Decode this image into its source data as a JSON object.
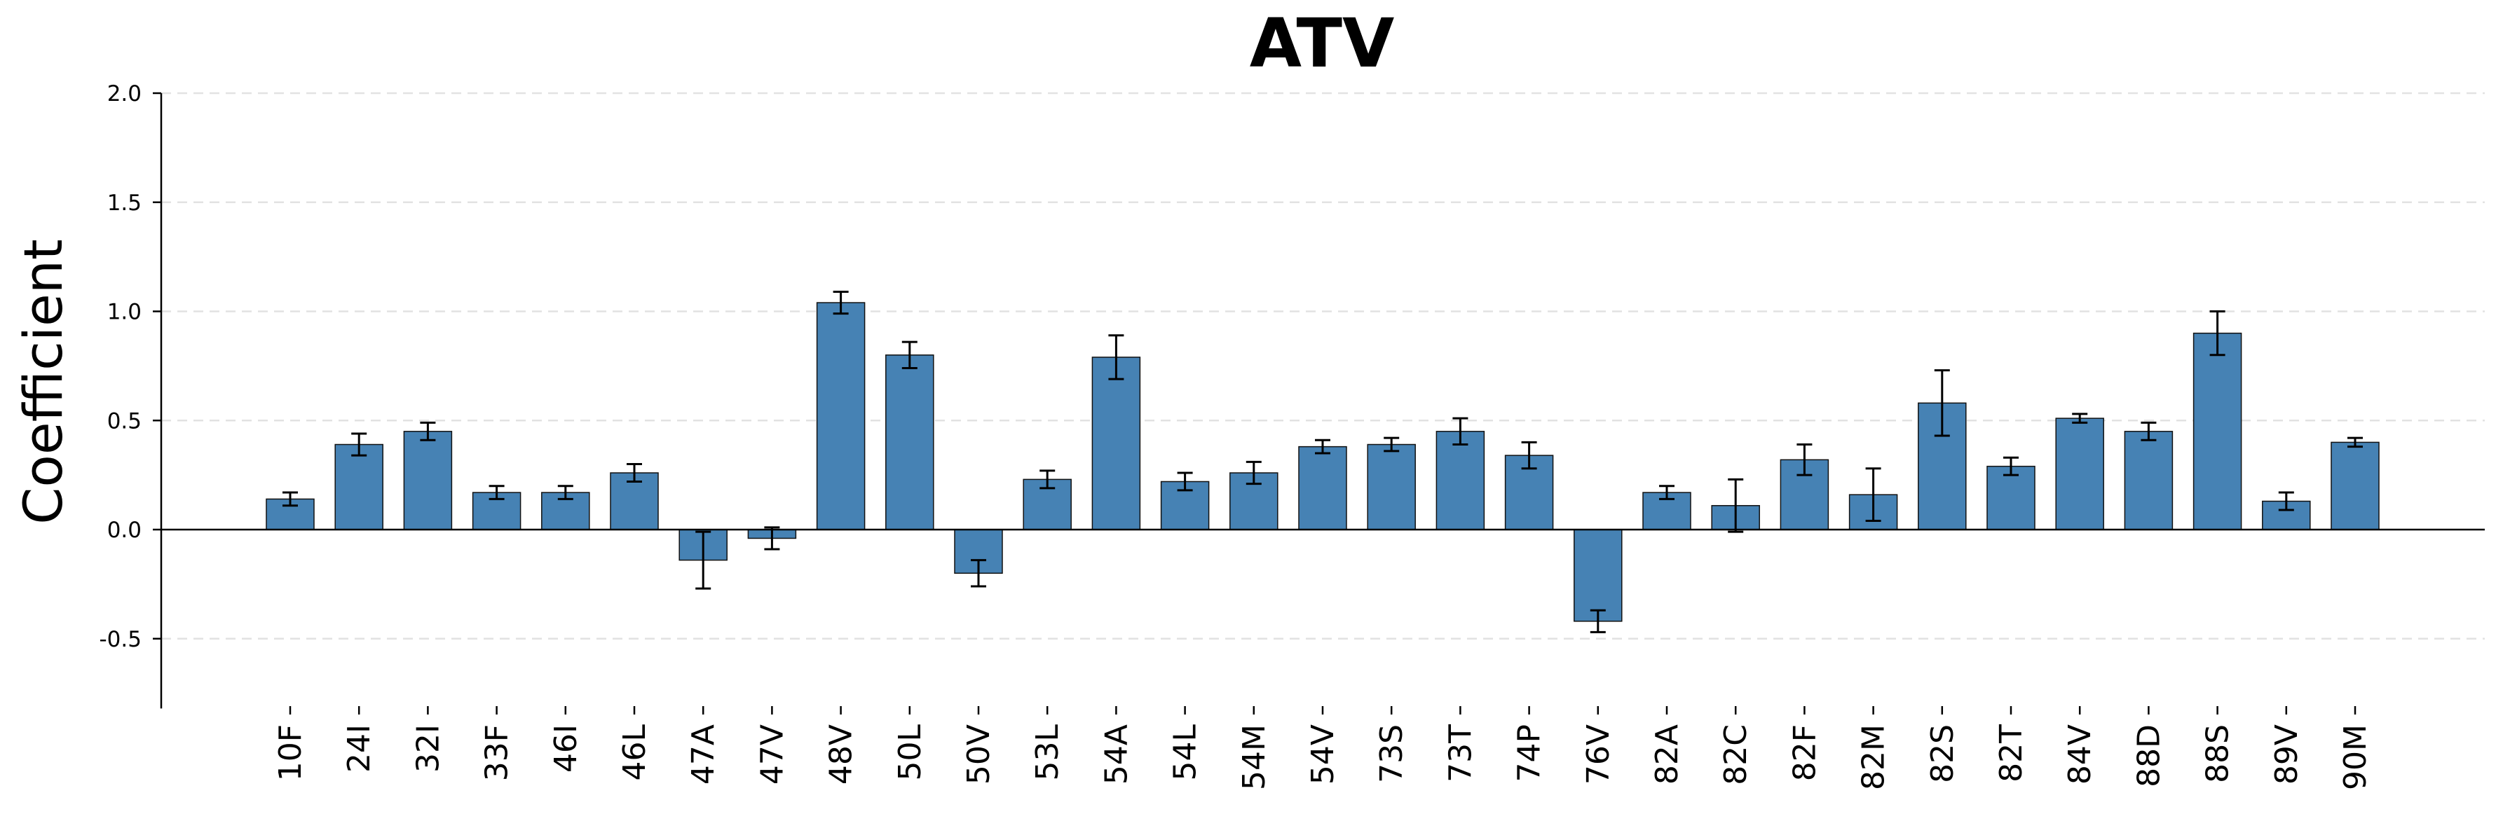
{
  "chart_data": {
    "type": "bar",
    "title": "ATV",
    "ylabel": "Coefficient",
    "xlabel": "",
    "ylim": [
      -0.82,
      2.0
    ],
    "yticks": [
      -0.5,
      0.0,
      0.5,
      1.0,
      1.5,
      2.0
    ],
    "ytick_labels": [
      "-0.5",
      "0.0",
      "0.5",
      "1.0",
      "1.5",
      "2.0"
    ],
    "grid": "horizontal-dashed",
    "bar_color": "#4682b4",
    "categories": [
      "10F",
      "24I",
      "32I",
      "33F",
      "46I",
      "46L",
      "47A",
      "47V",
      "48V",
      "50L",
      "50V",
      "53L",
      "54A",
      "54L",
      "54M",
      "54V",
      "73S",
      "73T",
      "74P",
      "76V",
      "82A",
      "82C",
      "82F",
      "82M",
      "82S",
      "82T",
      "84V",
      "88D",
      "88S",
      "89V",
      "90M"
    ],
    "values": [
      0.14,
      0.39,
      0.45,
      0.17,
      0.17,
      0.26,
      -0.14,
      -0.04,
      1.04,
      0.8,
      -0.2,
      0.23,
      0.79,
      0.22,
      0.26,
      0.38,
      0.39,
      0.45,
      0.34,
      -0.42,
      0.17,
      0.11,
      0.32,
      0.16,
      0.58,
      0.29,
      0.51,
      0.45,
      0.9,
      0.13,
      0.4
    ],
    "errors": [
      0.03,
      0.05,
      0.04,
      0.03,
      0.03,
      0.04,
      0.13,
      0.05,
      0.05,
      0.06,
      0.06,
      0.04,
      0.1,
      0.04,
      0.05,
      0.03,
      0.03,
      0.06,
      0.06,
      0.05,
      0.03,
      0.12,
      0.07,
      0.12,
      0.15,
      0.04,
      0.02,
      0.04,
      0.1,
      0.04,
      0.02
    ]
  }
}
